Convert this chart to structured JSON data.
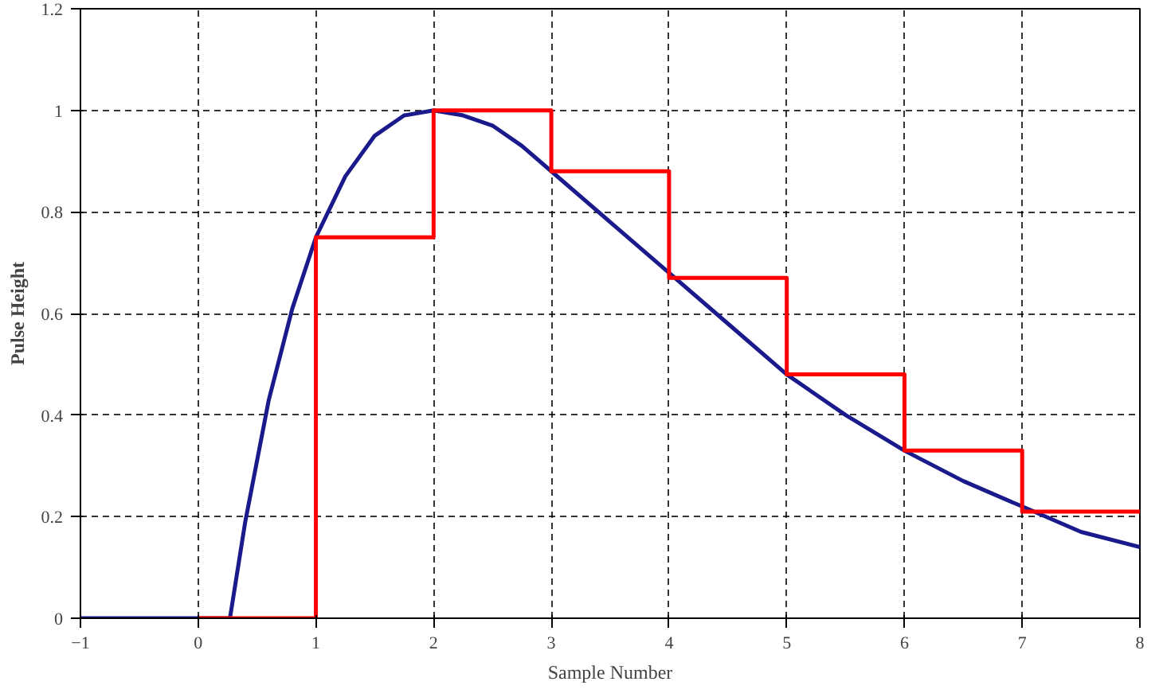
{
  "chart_data": {
    "type": "line",
    "xlabel": "Sample Number",
    "ylabel": "Pulse Height",
    "xlim": [
      -1,
      8
    ],
    "ylim": [
      0,
      1.2
    ],
    "xticks": [
      -1,
      0,
      1,
      2,
      3,
      4,
      5,
      6,
      7,
      8
    ],
    "yticks": [
      0,
      0.2,
      0.4,
      0.6,
      0.8,
      1,
      1.2
    ],
    "grid": true,
    "series": [
      {
        "color": "#1a1a8c",
        "x": [
          -1,
          0,
          0.27,
          0.4,
          0.6,
          0.8,
          1,
          1.25,
          1.5,
          1.75,
          2,
          2.25,
          2.5,
          2.75,
          3,
          3.5,
          4,
          4.5,
          5,
          5.5,
          6,
          6.5,
          7,
          7.5,
          8
        ],
        "values": [
          0,
          0,
          0,
          0.19,
          0.43,
          0.61,
          0.75,
          0.87,
          0.95,
          0.99,
          1,
          0.99,
          0.97,
          0.93,
          0.88,
          0.78,
          0.68,
          0.58,
          0.48,
          0.4,
          0.33,
          0.27,
          0.22,
          0.17,
          0.14
        ]
      },
      {
        "type": "step",
        "color": "#ff0000",
        "x": [
          0,
          1,
          2,
          3,
          4,
          5,
          6,
          7,
          8
        ],
        "values": [
          0,
          0.75,
          1,
          0.88,
          0.67,
          0.48,
          0.33,
          0.21,
          0.21
        ]
      }
    ]
  }
}
